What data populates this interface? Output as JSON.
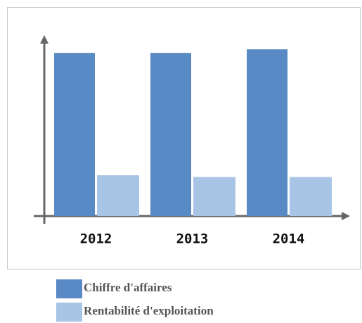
{
  "chart_data": {
    "type": "bar",
    "categories": [
      "2012",
      "2013",
      "2014"
    ],
    "series": [
      {
        "name": "Chiffre d'affaires",
        "color": "#5a8ac6",
        "values": [
          92,
          92,
          94
        ]
      },
      {
        "name": "Rentabilité d'exploitation",
        "color": "#a9c5e6",
        "values": [
          23,
          22,
          22
        ]
      }
    ],
    "ylim": [
      0,
      100
    ]
  }
}
